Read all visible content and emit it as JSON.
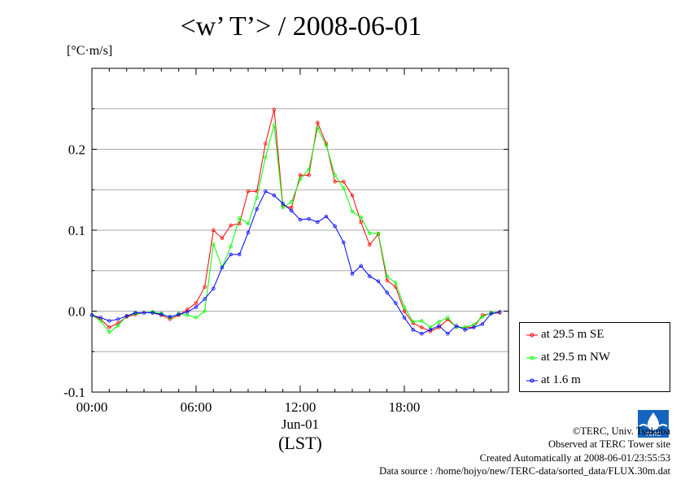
{
  "title": "<w’ T’> / 2008-06-01",
  "unit_label": "[°C·m/s]",
  "chart_data": {
    "type": "line",
    "title": "<w’ T’> / 2008-06-01",
    "ylabel": "[°C·m/s]",
    "xlabel": "(LST)",
    "x_date_label": "Jun-01",
    "x_tick_labels": [
      "00:00",
      "06:00",
      "12:00",
      "18:00"
    ],
    "x_ticks_hours": [
      0,
      6,
      12,
      18
    ],
    "xlim": [
      0,
      24
    ],
    "y_tick_labels": [
      "-0.1",
      "0.0",
      "0.1",
      "0.2"
    ],
    "y_ticks": [
      -0.1,
      0.0,
      0.1,
      0.2
    ],
    "ylim": [
      -0.1,
      0.3
    ],
    "grid": true,
    "legend_position": "right, below plot",
    "x": [
      0.0,
      0.5,
      1.0,
      1.5,
      2.0,
      2.5,
      3.0,
      3.5,
      4.0,
      4.5,
      5.0,
      5.5,
      6.0,
      6.5,
      7.0,
      7.5,
      8.0,
      8.5,
      9.0,
      9.5,
      10.0,
      10.5,
      11.0,
      11.5,
      12.0,
      12.5,
      13.0,
      13.5,
      14.0,
      14.5,
      15.0,
      15.5,
      16.0,
      16.5,
      17.0,
      17.5,
      18.0,
      18.5,
      19.0,
      19.5,
      20.0,
      20.5,
      21.0,
      21.5,
      22.0,
      22.5,
      23.0,
      23.5
    ],
    "series": [
      {
        "name": "at 29.5 m SE",
        "color": "#ff0000",
        "values": [
          -0.005,
          -0.01,
          -0.02,
          -0.015,
          -0.007,
          -0.004,
          -0.002,
          -0.002,
          -0.005,
          -0.01,
          -0.005,
          0.002,
          0.01,
          0.03,
          0.1,
          0.09,
          0.106,
          0.108,
          0.148,
          0.148,
          0.207,
          0.249,
          0.13,
          0.128,
          0.168,
          0.168,
          0.233,
          0.207,
          0.16,
          0.16,
          0.143,
          0.11,
          0.082,
          0.095,
          0.038,
          0.03,
          0.0,
          -0.015,
          -0.02,
          -0.025,
          -0.02,
          -0.01,
          -0.02,
          -0.02,
          -0.02,
          -0.005,
          -0.003,
          -0.002
        ]
      },
      {
        "name": "at 29.5 m NW",
        "color": "#00ff00",
        "values": [
          -0.005,
          -0.012,
          -0.026,
          -0.018,
          -0.006,
          -0.003,
          -0.002,
          -0.001,
          -0.003,
          -0.008,
          -0.003,
          -0.005,
          -0.008,
          0.0,
          0.083,
          0.054,
          0.08,
          0.115,
          0.108,
          0.14,
          0.19,
          0.23,
          0.128,
          0.135,
          0.163,
          0.175,
          0.226,
          0.205,
          0.168,
          0.152,
          0.123,
          0.116,
          0.096,
          0.096,
          0.043,
          0.035,
          0.005,
          -0.013,
          -0.012,
          -0.02,
          -0.013,
          -0.008,
          -0.02,
          -0.02,
          -0.017,
          -0.007,
          -0.002,
          -0.001
        ]
      },
      {
        "name": "at 1.6 m",
        "color": "#0000ff",
        "values": [
          -0.005,
          -0.008,
          -0.012,
          -0.01,
          -0.006,
          -0.002,
          -0.002,
          -0.002,
          -0.004,
          -0.007,
          -0.004,
          -0.001,
          0.005,
          0.015,
          0.028,
          0.054,
          0.07,
          0.07,
          0.097,
          0.126,
          0.148,
          0.143,
          0.133,
          0.124,
          0.113,
          0.114,
          0.11,
          0.117,
          0.105,
          0.085,
          0.046,
          0.056,
          0.043,
          0.037,
          0.023,
          0.01,
          -0.008,
          -0.023,
          -0.028,
          -0.023,
          -0.018,
          -0.028,
          -0.018,
          -0.023,
          -0.02,
          -0.016,
          -0.003,
          -0.001
        ]
      }
    ]
  },
  "legend": [
    {
      "label": "at 29.5 m SE",
      "color": "#ff0000"
    },
    {
      "label": "at 29.5 m NW",
      "color": "#00ff00"
    },
    {
      "label": "at 1.6 m",
      "color": "#0000ff"
    }
  ],
  "credits": {
    "copyright": "©TERC, Univ. Tsukuba",
    "observed": "Observed at TERC Tower site",
    "created": "Created Automatically at 2008-06-01/23:55:53",
    "source": "Data source : /home/hojyo/new/TERC-data/sorted_data/FLUX.30m.dat",
    "logo_text": "TERC"
  },
  "colors": {
    "grid": "#aaaaaa",
    "axis": "#000000",
    "logo": "#1565c0"
  }
}
